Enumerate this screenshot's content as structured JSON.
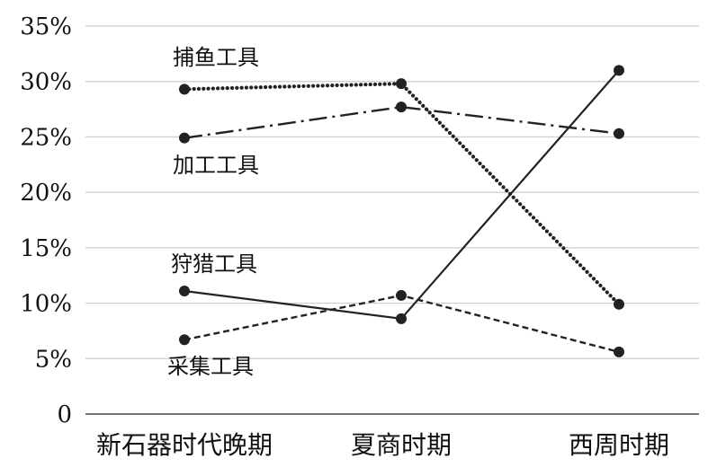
{
  "chart_data": {
    "type": "line",
    "title": "",
    "xlabel": "",
    "ylabel": "",
    "categories": [
      "新石器时代晚期",
      "夏商时期",
      "西周时期"
    ],
    "y_ticks": [
      "0",
      "5%",
      "10%",
      "15%",
      "20%",
      "25%",
      "30%",
      "35%"
    ],
    "ylim": [
      0,
      35
    ],
    "y_unit": "%",
    "grid": true,
    "legend": "inline-labels",
    "series": [
      {
        "name": "捕鱼工具",
        "values": [
          29.3,
          29.8,
          9.9
        ],
        "style": "dotted"
      },
      {
        "name": "加工工具",
        "values": [
          24.9,
          27.7,
          25.3
        ],
        "style": "dash-dot"
      },
      {
        "name": "狩猎工具",
        "values": [
          11.1,
          8.6,
          31.0
        ],
        "style": "solid"
      },
      {
        "name": "采集工具",
        "values": [
          6.7,
          10.7,
          5.6
        ],
        "style": "dashed"
      }
    ],
    "colors": {
      "line": "#222222",
      "grid": "#cccccc",
      "axis": "#444444"
    }
  }
}
